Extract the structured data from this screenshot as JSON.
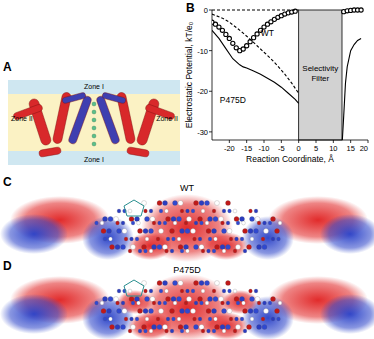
{
  "panels": {
    "A": {
      "label": "A",
      "zones": [
        "Zone I",
        "Zone II",
        "Zone II",
        "Zone I"
      ]
    },
    "B": {
      "label": "B"
    },
    "C": {
      "label": "C",
      "title": "WT"
    },
    "D": {
      "label": "D",
      "title": "P475D"
    }
  },
  "chart_data": {
    "type": "line",
    "xlabel": "Reaction Coordinate, Å",
    "ylabel": "Electrostatic Potential, kT/e₀",
    "xlim": [
      -25,
      20
    ],
    "ylim": [
      -32,
      0
    ],
    "xticks": [
      -20,
      -15,
      -10,
      -5,
      0,
      5,
      10,
      15,
      20
    ],
    "yticks": [
      0,
      -10,
      -20,
      -30
    ],
    "series": [
      {
        "type": "scatter",
        "marker": "circle",
        "color": "#000000",
        "x": [
          -25,
          -24,
          -23,
          -22,
          -21,
          -20,
          -19,
          -18,
          -17,
          -16,
          -15,
          -14,
          -13,
          -12,
          -11,
          -10,
          -9,
          -8,
          -7,
          -6,
          -5,
          -4,
          -3,
          -2,
          -1,
          13,
          14,
          15,
          16,
          17,
          18
        ],
        "values": [
          -3,
          -3.5,
          -4.2,
          -5,
          -6,
          -7,
          -8.2,
          -9.3,
          -10,
          -9.6,
          -8.8,
          -7.8,
          -6.8,
          -5.9,
          -5,
          -4.2,
          -3.5,
          -2.9,
          -2.3,
          -1.8,
          -1.4,
          -1,
          -0.7,
          -0.5,
          -0.3,
          -0.4,
          -0.2,
          -0.1,
          0,
          0,
          0
        ]
      },
      {
        "type": "line",
        "line_style": "dashed",
        "color": "#000000",
        "x": [
          -25,
          -22,
          -20,
          -18,
          -16,
          -14,
          -12,
          -10,
          -8,
          -6,
          -4,
          -2,
          0
        ],
        "values": [
          -1,
          -2,
          -3,
          -4.3,
          -5.7,
          -7.2,
          -8.8,
          -10.4,
          -12,
          -13.8,
          -15.8,
          -18,
          -20.5
        ]
      },
      {
        "type": "line",
        "line_style": "solid",
        "color": "#000000",
        "x": [
          -25,
          -23,
          -21,
          -19,
          -17,
          -16,
          -15,
          -13,
          -11,
          -9,
          -7,
          -5,
          -3,
          -1,
          0,
          6,
          12.6,
          13,
          13.5,
          14,
          15,
          16,
          17,
          18
        ],
        "values": [
          -5,
          -7,
          -9.5,
          -12,
          -13.5,
          -14,
          -14.3,
          -15,
          -15.8,
          -16.8,
          -17.8,
          -19,
          -20.5,
          -22,
          -23,
          null,
          -32,
          -26,
          -18,
          -14,
          -10,
          -8.5,
          -7.5,
          -7
        ]
      },
      {
        "type": "line",
        "line_style": "dashed",
        "color": "#000000",
        "x": [
          -25,
          0
        ],
        "values": [
          0,
          0
        ]
      }
    ],
    "annotations": [
      {
        "text": "WT",
        "x": -9,
        "y": -6.5
      },
      {
        "text": "P475D",
        "x": -19,
        "y": -23
      },
      {
        "text": "Selectivity Filter",
        "x": [
          0,
          12.5
        ]
      }
    ]
  }
}
